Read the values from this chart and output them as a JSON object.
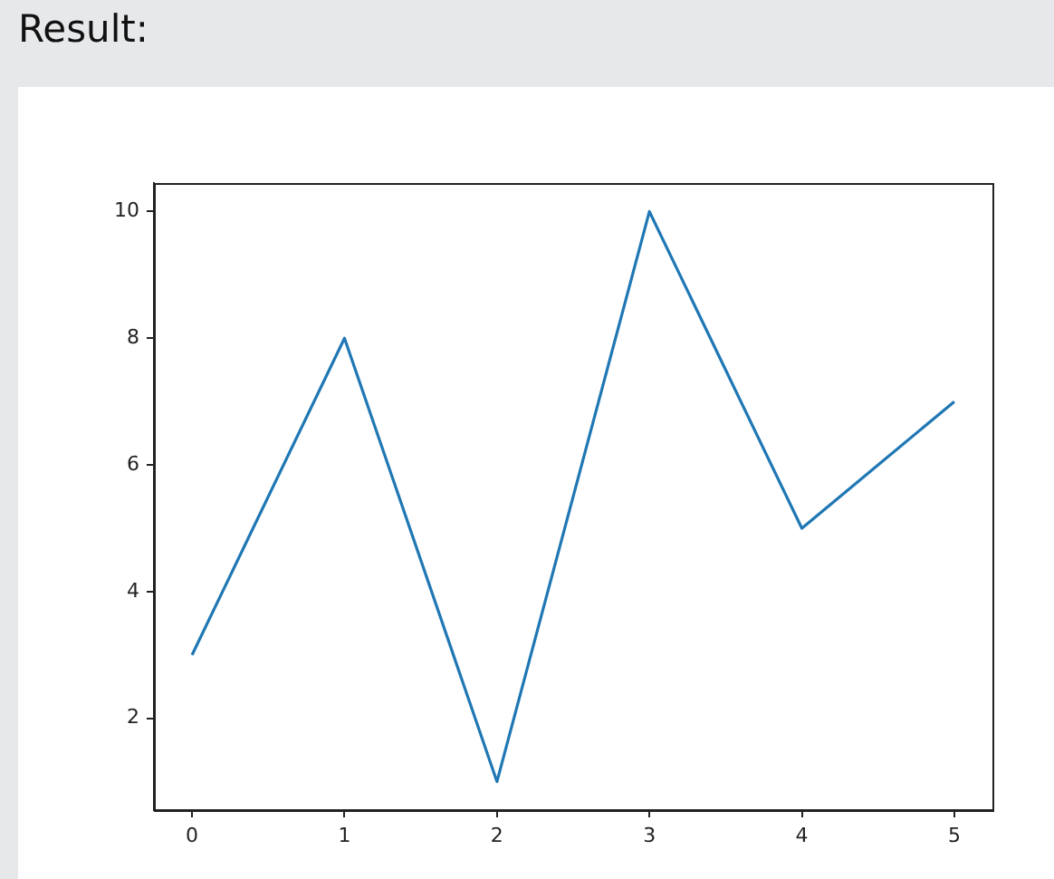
{
  "chart_data": {
    "type": "line",
    "annotations": [
      "Result:"
    ],
    "x": [
      0,
      1,
      2,
      3,
      4,
      5
    ],
    "values": [
      3,
      8,
      1,
      10,
      5,
      7
    ],
    "color": "#1f77b4",
    "xlim": [
      -0.25,
      5.25
    ],
    "xticks": [
      0,
      1,
      2,
      3,
      4,
      5
    ],
    "ylim": [
      0.55,
      10.45
    ],
    "yticks": [
      2,
      4,
      6,
      8,
      10
    ],
    "grid": false,
    "legend": false,
    "marker": "none",
    "line_style": "solid"
  }
}
